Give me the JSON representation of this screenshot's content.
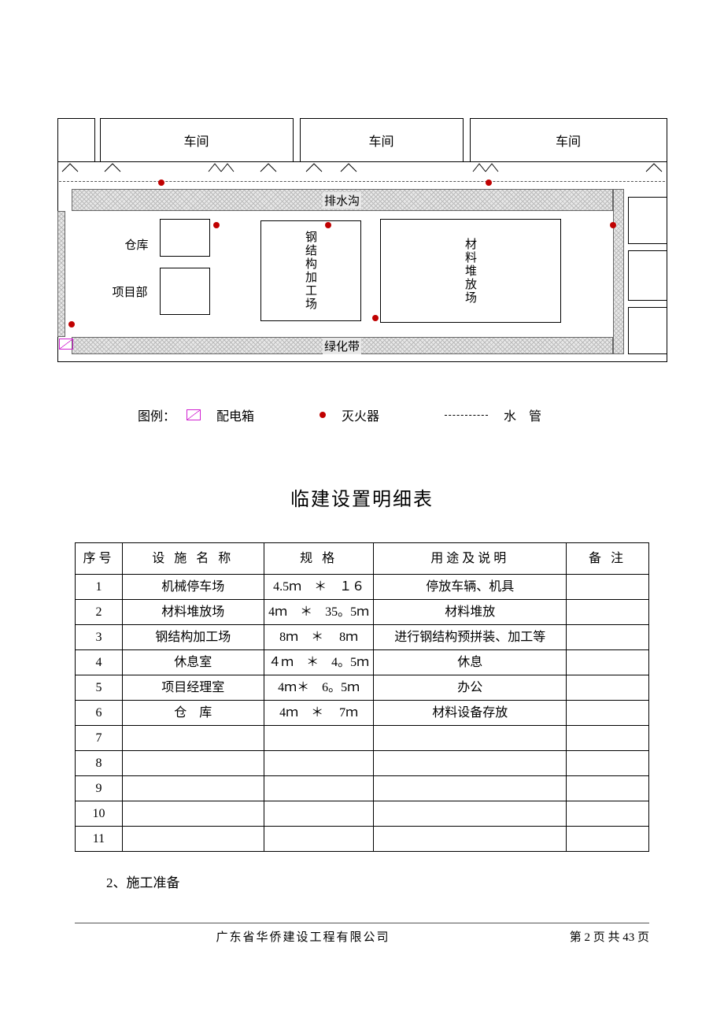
{
  "diagram": {
    "workshops": [
      {
        "label": "车间"
      },
      {
        "label": "车间"
      },
      {
        "label": "车间"
      }
    ],
    "drain_label": "排水沟",
    "green_label": "绿化带",
    "warehouse_label": "仓库",
    "pm_office_label": "项目部",
    "steel_yard_label": "钢结构加工场",
    "material_yard_label": "材料堆放场",
    "colors": {
      "fire": "#c00000",
      "dist_box": "#d020d0",
      "hatch": "#bbbbbb",
      "line": "#000000"
    }
  },
  "legend": {
    "title": "图例：",
    "items": [
      {
        "key": "dist",
        "label": "配电箱"
      },
      {
        "key": "fire",
        "label": "灭火器"
      },
      {
        "key": "pipe",
        "label": "水　管"
      }
    ]
  },
  "table": {
    "title": "临建设置明细表",
    "headers": {
      "seq": "序号",
      "name": "设 施  名  称",
      "spec": "规  格",
      "use": "用途及说明",
      "note": "备  注"
    },
    "rows": [
      {
        "seq": "1",
        "name": "机械停车场",
        "spec": "4.5ｍ　＊　１６",
        "use": "停放车辆、机具",
        "note": ""
      },
      {
        "seq": "2",
        "name": "材料堆放场",
        "spec": "4ｍ　＊　35。5ｍ",
        "use": "材料堆放",
        "note": ""
      },
      {
        "seq": "3",
        "name": "钢结构加工场",
        "spec": "8ｍ　＊　 8ｍ",
        "use": "进行钢结构预拼装、加工等",
        "note": ""
      },
      {
        "seq": "4",
        "name": "休息室",
        "spec": "４ｍ　＊　4。5ｍ",
        "use": "休息",
        "note": ""
      },
      {
        "seq": "5",
        "name": "项目经理室",
        "spec": "4ｍ＊　6。5ｍ",
        "use": "办公",
        "note": ""
      },
      {
        "seq": "6",
        "name": "仓　库",
        "spec": "4ｍ　＊　 7ｍ",
        "use": "材料设备存放",
        "note": ""
      },
      {
        "seq": "7",
        "name": "",
        "spec": "",
        "use": "",
        "note": ""
      },
      {
        "seq": "8",
        "name": "",
        "spec": "",
        "use": "",
        "note": ""
      },
      {
        "seq": "9",
        "name": "",
        "spec": "",
        "use": "",
        "note": ""
      },
      {
        "seq": "10",
        "name": "",
        "spec": "",
        "use": "",
        "note": ""
      },
      {
        "seq": "11",
        "name": "",
        "spec": "",
        "use": "",
        "note": ""
      }
    ]
  },
  "section_heading": "2、施工准备",
  "footer": {
    "company": "广东省华侨建设工程有限公司",
    "pager_prefix": "第 ",
    "page_current": "2",
    "pager_mid": " 页 共 ",
    "page_total": "43",
    "pager_suffix": " 页"
  }
}
